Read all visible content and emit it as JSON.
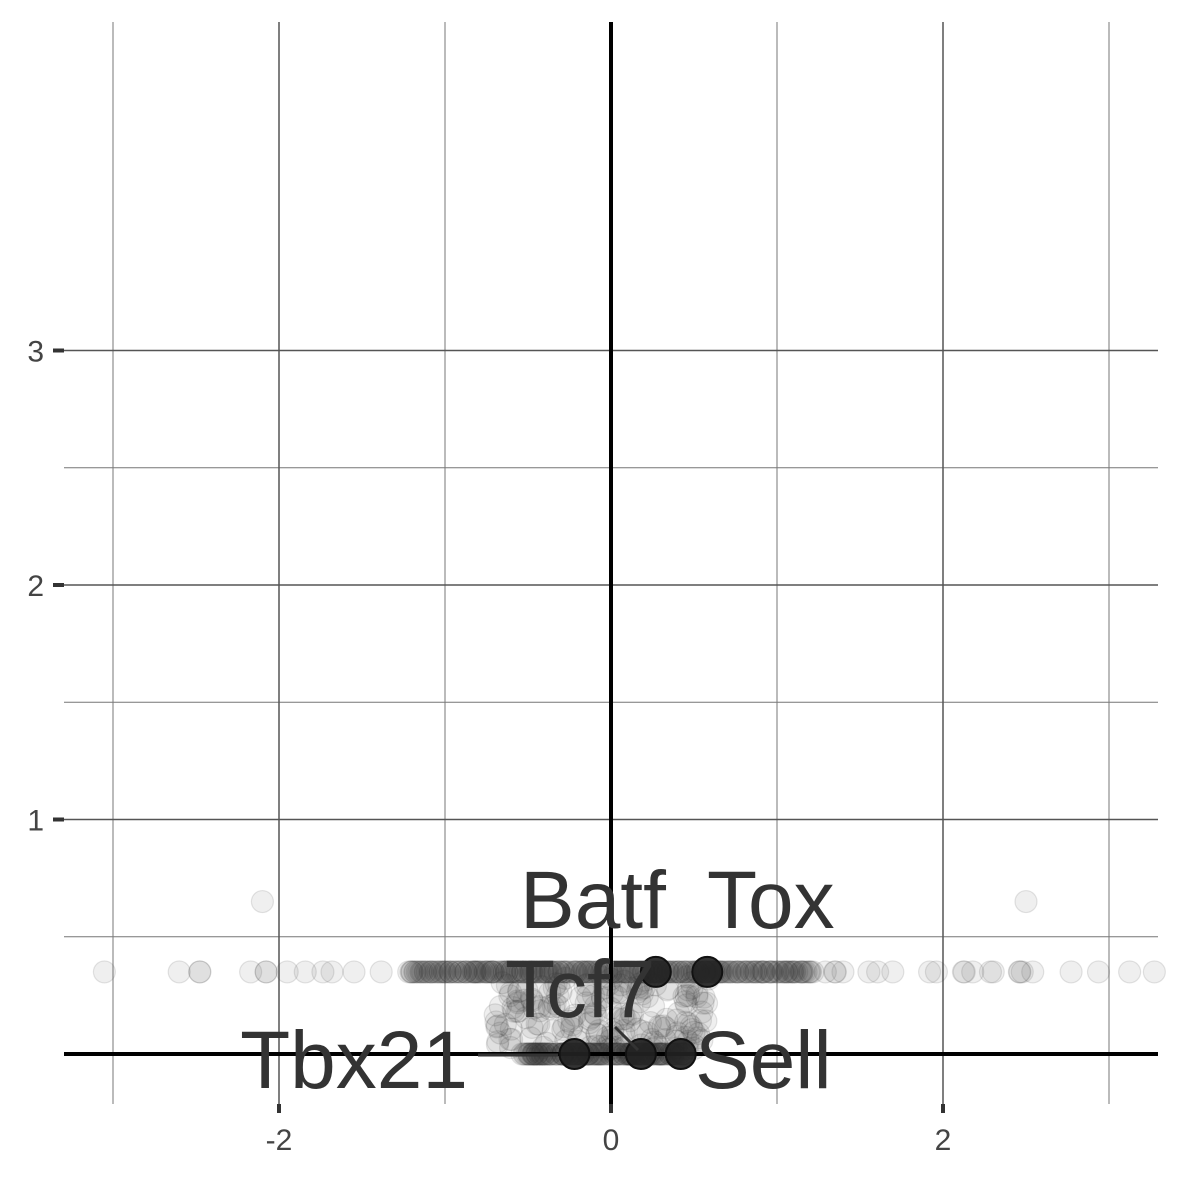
{
  "chart_data": {
    "type": "scatter",
    "title": "",
    "xlabel": "",
    "ylabel": "",
    "xlim": [
      -3.3,
      3.3
    ],
    "ylim": [
      -0.2,
      3.1
    ],
    "x_ticks": [
      -2,
      0,
      2
    ],
    "x_tick_labels": [
      "-2",
      "0",
      "2"
    ],
    "y_ticks": [
      1,
      2,
      3
    ],
    "y_tick_labels": [
      "1",
      "2",
      "3"
    ],
    "x_minor_gridlines": [
      -3,
      -1,
      1,
      3
    ],
    "y_minor_gridlines": [
      0.5,
      1.5,
      2.5
    ],
    "reference_lines": {
      "x": 0,
      "y": 0
    },
    "grid": true,
    "point_color": "#333333",
    "point_alpha": 0.08,
    "background_bands": [
      {
        "y": 0.35,
        "x_min": -3.2,
        "x_max": 3.3,
        "dense_min": -1.2,
        "dense_max": 1.2
      },
      {
        "y": 0.0,
        "x_min": -0.55,
        "x_max": 0.45,
        "dense_min": -0.5,
        "dense_max": 0.4
      }
    ],
    "background_cloud": {
      "x_min": -0.7,
      "x_max": 0.6,
      "y_min": 0.02,
      "y_max": 0.33
    },
    "background_outliers": [
      {
        "x": -2.1,
        "y": 0.65
      },
      {
        "x": 2.5,
        "y": 0.65
      }
    ],
    "highlighted_genes": [
      {
        "gene": "Batf",
        "x": 0.27,
        "y": 0.35
      },
      {
        "gene": "Tox",
        "x": 0.58,
        "y": 0.35
      },
      {
        "gene": "Tcf7",
        "x": 0.18,
        "y": 0.0
      },
      {
        "gene": "Tbx21",
        "x": -0.22,
        "y": 0.0
      },
      {
        "gene": "Sell",
        "x": 0.42,
        "y": 0.0
      }
    ]
  }
}
